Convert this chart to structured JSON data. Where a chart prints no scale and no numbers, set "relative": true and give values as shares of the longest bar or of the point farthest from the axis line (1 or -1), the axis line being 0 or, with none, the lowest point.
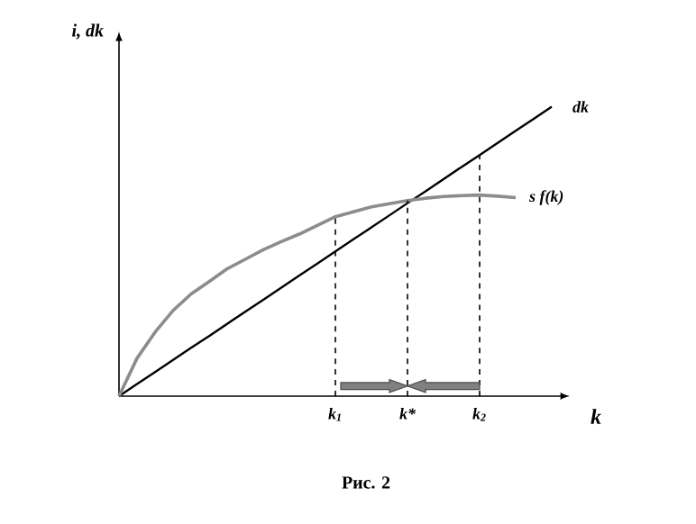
{
  "chart_data": {
    "type": "line",
    "relative": true,
    "xlabel": "k",
    "ylabel": "i, dk",
    "categories": [
      null,
      null,
      null,
      null,
      null,
      null,
      null,
      null,
      null,
      null,
      null,
      null,
      "k$_{1}$",
      null,
      null,
      null,
      "k*",
      null,
      null,
      null,
      "k$_{2}$",
      null,
      null,
      null,
      null
    ],
    "series": [
      {
        "name": "dk",
        "color": "#000000",
        "values": [
          0,
          0.042,
          0.083,
          0.125,
          0.167,
          0.208,
          0.25,
          0.292,
          0.333,
          0.375,
          0.417,
          0.458,
          0.5,
          0.542,
          0.583,
          0.625,
          0.667,
          0.708,
          0.75,
          0.792,
          0.833,
          0.875,
          0.917,
          0.958,
          1
        ]
      },
      {
        "name": "s f(k)",
        "color": "#8c8c8c",
        "values": [
          0,
          0.131,
          0.221,
          0.296,
          0.353,
          0.396,
          0.44,
          0.473,
          0.506,
          0.534,
          0.56,
          0.59,
          0.62,
          0.637,
          0.654,
          0.665,
          0.676,
          0.684,
          0.69,
          0.693,
          0.695,
          0.691,
          0.686,
          null,
          null
        ]
      }
    ],
    "ref_lines": [
      {
        "axis": "x",
        "value": "k$_{1}$",
        "line_style": "dashed"
      },
      {
        "axis": "x",
        "value": "k*",
        "line_style": "dashed"
      },
      {
        "axis": "x",
        "value": "k$_{2}$",
        "line_style": "dashed"
      }
    ],
    "line_style": "solid",
    "marker": "none",
    "legend": false,
    "annotations": [
      "Рис. 2"
    ]
  }
}
